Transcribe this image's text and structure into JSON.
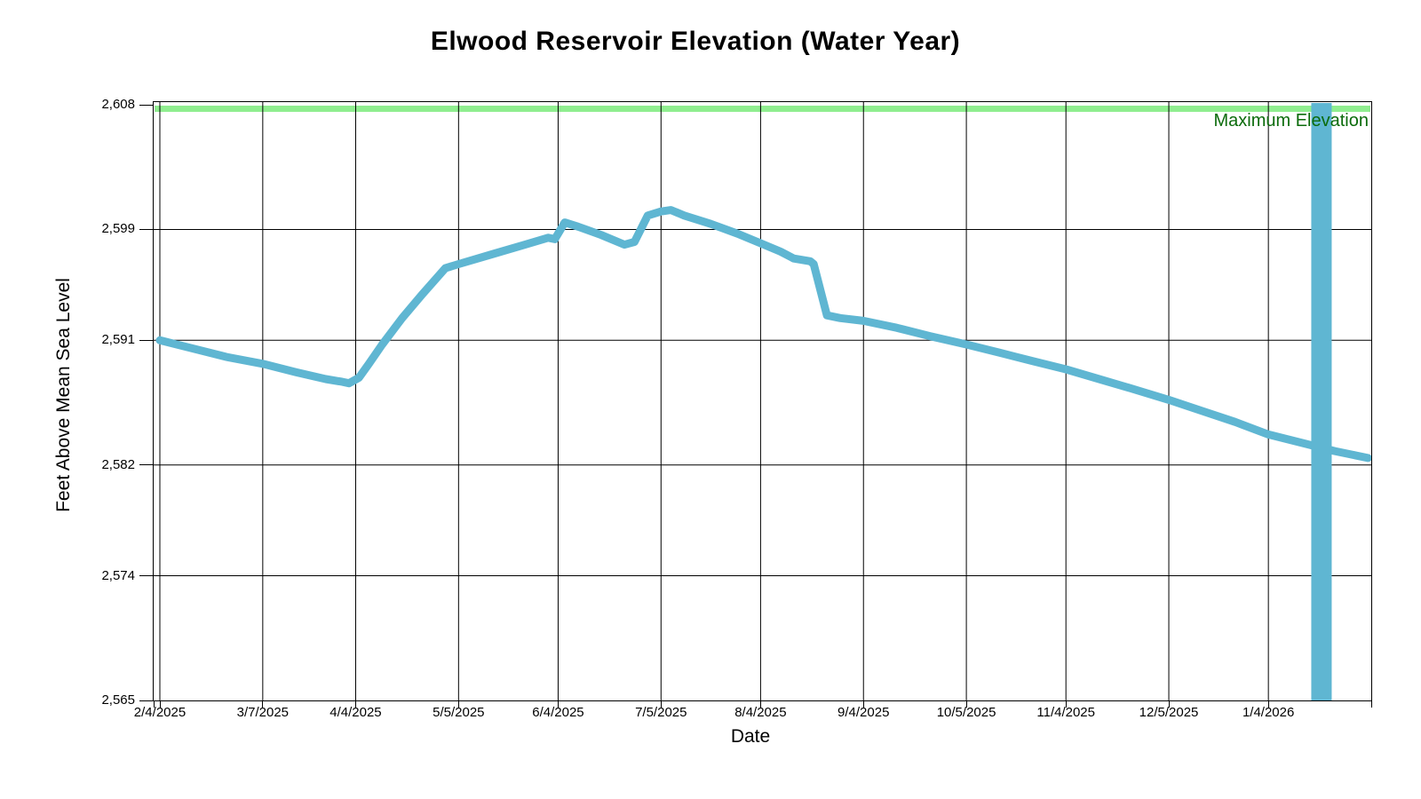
{
  "chart_data": {
    "type": "line",
    "title": "Elwood Reservoir Elevation (Water Year)",
    "xlabel": "Date",
    "ylabel": "Feet Above Mean Sea Level",
    "x_range": {
      "start": "2/4/2025",
      "end": "2/4/2026"
    },
    "ylim": [
      2565,
      2608
    ],
    "grid": true,
    "legend": "none",
    "y_ticks": [
      {
        "value": 2608,
        "label": "2,608"
      },
      {
        "value": 2599,
        "label": "2,599"
      },
      {
        "value": 2591,
        "label": "2,591"
      },
      {
        "value": 2582,
        "label": "2,582"
      },
      {
        "value": 2574,
        "label": "2,574"
      },
      {
        "value": 2565,
        "label": "2,565"
      }
    ],
    "x_ticks": [
      {
        "date": "2/4/2025",
        "label": "2/4/2025"
      },
      {
        "date": "3/7/2025",
        "label": "3/7/2025"
      },
      {
        "date": "4/4/2025",
        "label": "4/4/2025"
      },
      {
        "date": "5/5/2025",
        "label": "5/5/2025"
      },
      {
        "date": "6/4/2025",
        "label": "6/4/2025"
      },
      {
        "date": "7/5/2025",
        "label": "7/5/2025"
      },
      {
        "date": "8/4/2025",
        "label": "8/4/2025"
      },
      {
        "date": "9/4/2025",
        "label": "9/4/2025"
      },
      {
        "date": "10/5/2025",
        "label": "10/5/2025"
      },
      {
        "date": "11/4/2025",
        "label": "11/4/2025"
      },
      {
        "date": "12/5/2025",
        "label": "12/5/2025"
      },
      {
        "date": "1/4/2026",
        "label": "1/4/2026"
      }
    ],
    "max_line": {
      "label": "Maximum Elevation",
      "value": 2608,
      "band_color": "#90EE90",
      "label_color": "#0B6B0B"
    },
    "series": [
      {
        "color": "#5FB6D2",
        "points": [
          [
            "2/4/2025",
            2591.0
          ],
          [
            "2/14/2025",
            2590.4
          ],
          [
            "2/24/2025",
            2589.8
          ],
          [
            "3/7/2025",
            2589.3
          ],
          [
            "3/17/2025",
            2588.7
          ],
          [
            "3/26/2025",
            2588.2
          ],
          [
            "3/31/2025",
            2588.0
          ],
          [
            "4/2/2025",
            2587.9
          ],
          [
            "4/5/2025",
            2588.3
          ],
          [
            "4/8/2025",
            2589.3
          ],
          [
            "4/12/2025",
            2590.7
          ],
          [
            "4/18/2025",
            2592.6
          ],
          [
            "4/24/2025",
            2594.3
          ],
          [
            "5/1/2025",
            2596.2
          ],
          [
            "5/5/2025",
            2596.5
          ],
          [
            "5/15/2025",
            2597.2
          ],
          [
            "5/25/2025",
            2597.9
          ],
          [
            "6/1/2025",
            2598.4
          ],
          [
            "6/3/2025",
            2598.3
          ],
          [
            "6/6/2025",
            2599.5
          ],
          [
            "6/10/2025",
            2599.2
          ],
          [
            "6/17/2025",
            2598.6
          ],
          [
            "6/24/2025",
            2597.9
          ],
          [
            "6/27/2025",
            2598.1
          ],
          [
            "7/1/2025",
            2600.0
          ],
          [
            "7/5/2025",
            2600.3
          ],
          [
            "7/8/2025",
            2600.4
          ],
          [
            "7/12/2025",
            2600.0
          ],
          [
            "7/20/2025",
            2599.4
          ],
          [
            "7/28/2025",
            2598.7
          ],
          [
            "8/4/2025",
            2598.0
          ],
          [
            "8/10/2025",
            2597.4
          ],
          [
            "8/14/2025",
            2596.9
          ],
          [
            "8/19/2025",
            2596.7
          ],
          [
            "8/20/2025",
            2596.5
          ],
          [
            "8/24/2025",
            2592.8
          ],
          [
            "8/28/2025",
            2592.6
          ],
          [
            "9/4/2025",
            2592.4
          ],
          [
            "9/14/2025",
            2591.9
          ],
          [
            "9/24/2025",
            2591.3
          ],
          [
            "10/5/2025",
            2590.7
          ],
          [
            "10/15/2025",
            2590.1
          ],
          [
            "10/25/2025",
            2589.5
          ],
          [
            "11/4/2025",
            2588.9
          ],
          [
            "11/14/2025",
            2588.2
          ],
          [
            "11/24/2025",
            2587.5
          ],
          [
            "12/5/2025",
            2586.7
          ],
          [
            "12/15/2025",
            2585.9
          ],
          [
            "12/25/2025",
            2585.1
          ],
          [
            "1/4/2026",
            2584.2
          ],
          [
            "1/14/2026",
            2583.6
          ],
          [
            "1/24/2026",
            2583.0
          ],
          [
            "2/3/2026",
            2582.5
          ]
        ]
      }
    ],
    "anomaly_bar": {
      "date": "1/20/2026",
      "from": 2565,
      "to": 2608,
      "color": "#5FB6D2"
    }
  },
  "colors": {
    "background": "#FFFFFF",
    "grid": "#000000",
    "text": "#000000"
  }
}
